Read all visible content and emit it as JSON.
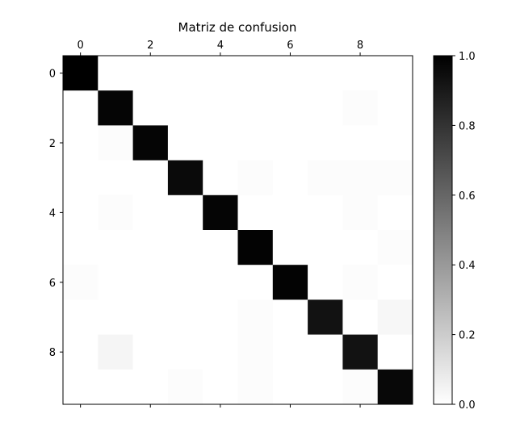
{
  "chart_data": {
    "type": "heatmap",
    "title": "Matriz de confusion",
    "xlabel": "",
    "ylabel": "",
    "x_ticks": [
      "0",
      "2",
      "4",
      "6",
      "8"
    ],
    "y_ticks": [
      "0",
      "2",
      "4",
      "6",
      "8"
    ],
    "tick_positions": [
      0,
      2,
      4,
      6,
      8
    ],
    "colormap": "gray_r",
    "color_min": "#ffffff",
    "color_max": "#000000",
    "vmin": 0.0,
    "vmax": 1.0,
    "colorbar_ticks": [
      "0.0",
      "0.2",
      "0.4",
      "0.6",
      "0.8",
      "1.0"
    ],
    "colorbar_tick_values": [
      0.0,
      0.2,
      0.4,
      0.6,
      0.8,
      1.0
    ],
    "matrix": [
      [
        1.0,
        0.0,
        0.0,
        0.0,
        0.0,
        0.0,
        0.0,
        0.0,
        0.0,
        0.0
      ],
      [
        0.0,
        0.98,
        0.0,
        0.0,
        0.0,
        0.0,
        0.0,
        0.0,
        0.01,
        0.0
      ],
      [
        0.0,
        0.01,
        0.98,
        0.0,
        0.0,
        0.0,
        0.0,
        0.0,
        0.0,
        0.0
      ],
      [
        0.0,
        0.0,
        0.0,
        0.96,
        0.0,
        0.01,
        0.0,
        0.01,
        0.01,
        0.01
      ],
      [
        0.0,
        0.01,
        0.0,
        0.0,
        0.98,
        0.0,
        0.0,
        0.0,
        0.01,
        0.0
      ],
      [
        0.0,
        0.0,
        0.0,
        0.0,
        0.0,
        0.99,
        0.0,
        0.0,
        0.0,
        0.01
      ],
      [
        0.01,
        0.0,
        0.0,
        0.0,
        0.0,
        0.0,
        0.99,
        0.0,
        0.01,
        0.0
      ],
      [
        0.0,
        0.0,
        0.0,
        0.0,
        0.0,
        0.01,
        0.0,
        0.93,
        0.0,
        0.03
      ],
      [
        0.0,
        0.04,
        0.0,
        0.0,
        0.0,
        0.01,
        0.0,
        0.0,
        0.93,
        0.0
      ],
      [
        0.0,
        0.0,
        0.0,
        0.01,
        0.0,
        0.01,
        0.0,
        0.0,
        0.01,
        0.97
      ]
    ]
  }
}
